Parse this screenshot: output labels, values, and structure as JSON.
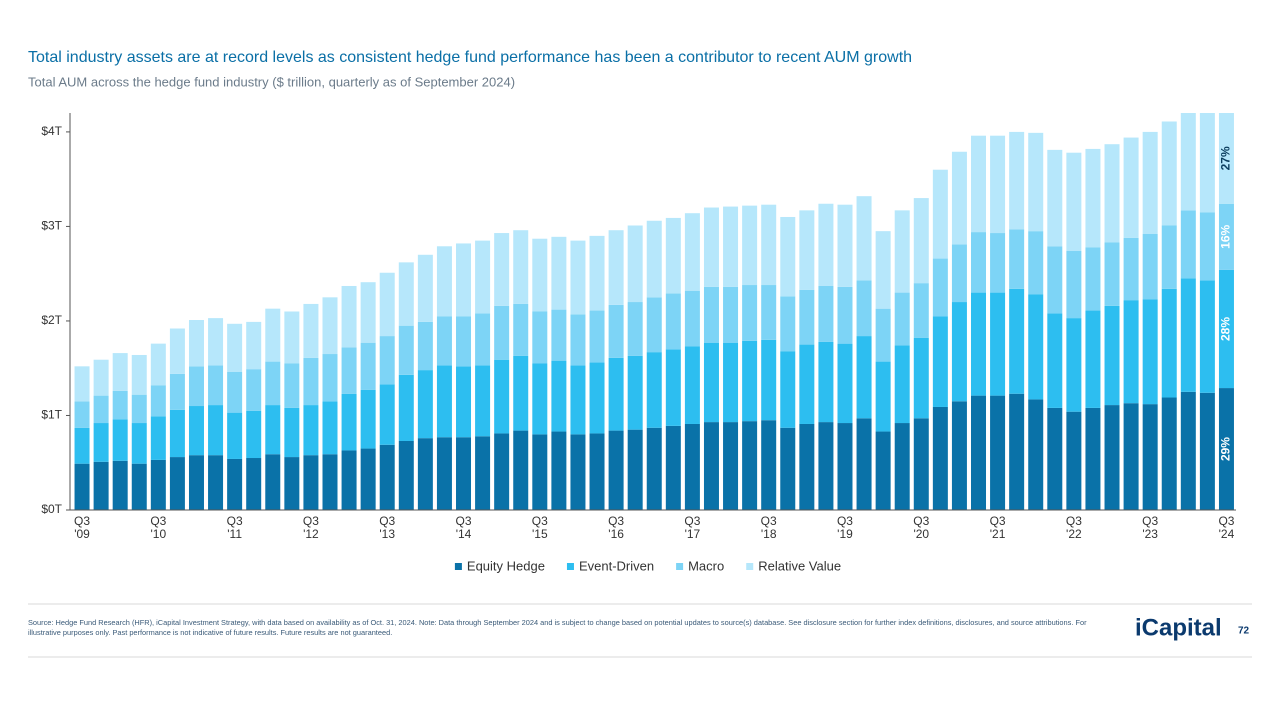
{
  "chart_data": {
    "type": "stacked_bar",
    "title": "Total industry assets are at record levels as consistent hedge fund performance has been a contributor to recent AUM growth",
    "subtitle": "Total AUM across the hedge fund industry ($ trillion, quarterly as of September 2024)",
    "categories": [
      "Q3 '09",
      null,
      null,
      null,
      "Q3 '10",
      null,
      null,
      null,
      "Q3 '11",
      null,
      null,
      null,
      "Q3 '12",
      null,
      null,
      null,
      "Q3 '13",
      null,
      null,
      null,
      "Q3 '14",
      null,
      null,
      null,
      "Q3 '15",
      null,
      null,
      null,
      "Q3 '16",
      null,
      null,
      null,
      "Q3 '17",
      null,
      null,
      null,
      "Q3 '18",
      null,
      null,
      null,
      "Q3 '19",
      null,
      null,
      null,
      "Q3 '20",
      null,
      null,
      null,
      "Q3 '21",
      null,
      null,
      null,
      "Q3 '22",
      null,
      null,
      null,
      "Q3 '23",
      null,
      null,
      null,
      "Q3 '24"
    ],
    "series": [
      {
        "name": "Equity Hedge",
        "color": "#0a72a8",
        "label_color": "#ffffff",
        "share": {
          "value": 29,
          "label": "29%"
        },
        "values": [
          0.49,
          0.51,
          0.52,
          0.49,
          0.53,
          0.56,
          0.58,
          0.58,
          0.54,
          0.55,
          0.59,
          0.56,
          0.58,
          0.59,
          0.63,
          0.65,
          0.69,
          0.73,
          0.76,
          0.77,
          0.77,
          0.78,
          0.81,
          0.84,
          0.8,
          0.83,
          0.8,
          0.81,
          0.84,
          0.85,
          0.87,
          0.89,
          0.91,
          0.93,
          0.93,
          0.94,
          0.95,
          0.87,
          0.91,
          0.93,
          0.92,
          0.97,
          0.83,
          0.92,
          0.97,
          1.09,
          1.15,
          1.21,
          1.21,
          1.23,
          1.17,
          1.08,
          1.04,
          1.08,
          1.11,
          1.13,
          1.12,
          1.19,
          1.25,
          1.24,
          1.29
        ]
      },
      {
        "name": "Event-Driven",
        "color": "#2dbef0",
        "label_color": "#ffffff",
        "share": {
          "value": 28,
          "label": "28%"
        },
        "values": [
          0.38,
          0.41,
          0.44,
          0.43,
          0.46,
          0.5,
          0.52,
          0.53,
          0.49,
          0.5,
          0.52,
          0.52,
          0.53,
          0.56,
          0.6,
          0.62,
          0.64,
          0.7,
          0.72,
          0.76,
          0.75,
          0.75,
          0.78,
          0.79,
          0.75,
          0.75,
          0.73,
          0.75,
          0.77,
          0.78,
          0.8,
          0.81,
          0.82,
          0.84,
          0.84,
          0.85,
          0.85,
          0.81,
          0.84,
          0.85,
          0.84,
          0.87,
          0.74,
          0.82,
          0.85,
          0.96,
          1.05,
          1.09,
          1.09,
          1.11,
          1.11,
          1.0,
          0.99,
          1.03,
          1.05,
          1.09,
          1.11,
          1.15,
          1.2,
          1.19,
          1.25
        ]
      },
      {
        "name": "Macro",
        "color": "#7dd4f6",
        "label_color": "#ffffff",
        "share": {
          "value": 16,
          "label": "16%"
        },
        "values": [
          0.28,
          0.29,
          0.3,
          0.3,
          0.33,
          0.38,
          0.42,
          0.42,
          0.43,
          0.44,
          0.46,
          0.47,
          0.5,
          0.5,
          0.49,
          0.5,
          0.51,
          0.52,
          0.51,
          0.52,
          0.53,
          0.55,
          0.57,
          0.55,
          0.55,
          0.54,
          0.54,
          0.55,
          0.56,
          0.57,
          0.58,
          0.59,
          0.59,
          0.59,
          0.59,
          0.59,
          0.58,
          0.58,
          0.58,
          0.59,
          0.6,
          0.59,
          0.56,
          0.56,
          0.58,
          0.61,
          0.61,
          0.64,
          0.63,
          0.63,
          0.67,
          0.71,
          0.71,
          0.67,
          0.67,
          0.66,
          0.69,
          0.67,
          0.72,
          0.72,
          0.7
        ]
      },
      {
        "name": "Relative Value",
        "color": "#b6e7fb",
        "label_color": "#0b3d5e",
        "share": {
          "value": 27,
          "label": "27%"
        },
        "values": [
          0.37,
          0.38,
          0.4,
          0.42,
          0.44,
          0.48,
          0.49,
          0.5,
          0.51,
          0.5,
          0.56,
          0.55,
          0.57,
          0.6,
          0.65,
          0.64,
          0.67,
          0.67,
          0.71,
          0.74,
          0.77,
          0.77,
          0.77,
          0.78,
          0.77,
          0.77,
          0.78,
          0.79,
          0.79,
          0.81,
          0.81,
          0.8,
          0.82,
          0.84,
          0.85,
          0.84,
          0.85,
          0.84,
          0.84,
          0.87,
          0.87,
          0.89,
          0.82,
          0.87,
          0.9,
          0.94,
          0.98,
          1.02,
          1.03,
          1.03,
          1.04,
          1.02,
          1.04,
          1.04,
          1.04,
          1.06,
          1.08,
          1.1,
          1.13,
          1.15,
          1.16
        ]
      }
    ],
    "ylim": [
      0,
      4.2
    ],
    "yticks": [
      {
        "value": 0,
        "label": "$0T"
      },
      {
        "value": 1,
        "label": "$1T"
      },
      {
        "value": 2,
        "label": "$2T"
      },
      {
        "value": 3,
        "label": "$3T"
      },
      {
        "value": 4,
        "label": "$4T"
      }
    ],
    "source": "Source: Hedge Fund Research (HFR), iCapital Investment Strategy, with data based on availability as of Oct. 31, 2024. Note: Data through September 2024 and is subject to change based on potential updates to source(s) database. See disclosure section for further index definitions, disclosures, and source attributions. For illustrative purposes only. Past performance is not indicative of future results. Future results are not guaranteed.",
    "logo": "iCapital",
    "page_number": "72"
  }
}
